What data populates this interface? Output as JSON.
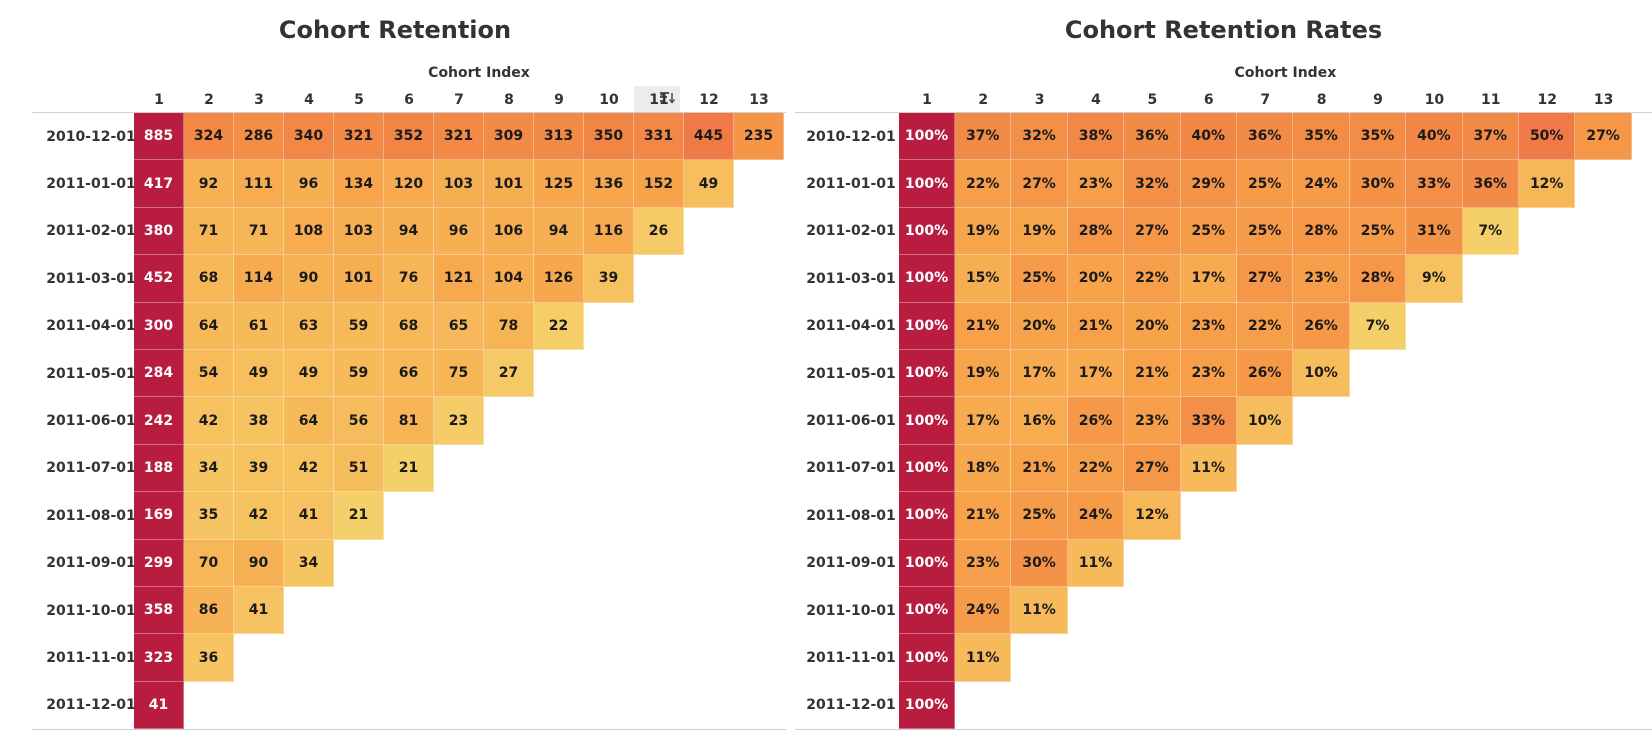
{
  "chart_data": [
    {
      "type": "heatmap",
      "title": "Cohort Retention",
      "xlabel": "Cohort Index",
      "ylabel": "",
      "columns": [
        "1",
        "2",
        "3",
        "4",
        "5",
        "6",
        "7",
        "8",
        "9",
        "10",
        "11",
        "12",
        "13"
      ],
      "rows": [
        "2010-12-01",
        "2011-01-01",
        "2011-02-01",
        "2011-03-01",
        "2011-04-01",
        "2011-05-01",
        "2011-06-01",
        "2011-07-01",
        "2011-08-01",
        "2011-09-01",
        "2011-10-01",
        "2011-11-01",
        "2011-12-01"
      ],
      "values": [
        [
          885,
          324,
          286,
          340,
          321,
          352,
          321,
          309,
          313,
          350,
          331,
          445,
          235
        ],
        [
          417,
          92,
          111,
          96,
          134,
          120,
          103,
          101,
          125,
          136,
          152,
          49
        ],
        [
          380,
          71,
          71,
          108,
          103,
          94,
          96,
          106,
          94,
          116,
          26
        ],
        [
          452,
          68,
          114,
          90,
          101,
          76,
          121,
          104,
          126,
          39
        ],
        [
          300,
          64,
          61,
          63,
          59,
          68,
          65,
          78,
          22
        ],
        [
          284,
          54,
          49,
          49,
          59,
          66,
          75,
          27
        ],
        [
          242,
          42,
          38,
          64,
          56,
          81,
          23
        ],
        [
          188,
          34,
          39,
          42,
          51,
          21
        ],
        [
          169,
          35,
          42,
          41,
          21
        ],
        [
          299,
          70,
          90,
          34
        ],
        [
          358,
          86,
          41
        ],
        [
          323,
          36
        ],
        [
          41
        ]
      ],
      "display": [
        [
          "885",
          "324",
          "286",
          "340",
          "321",
          "352",
          "321",
          "309",
          "313",
          "350",
          "331",
          "445",
          "235"
        ],
        [
          "417",
          "92",
          "111",
          "96",
          "134",
          "120",
          "103",
          "101",
          "125",
          "136",
          "152",
          "49"
        ],
        [
          "380",
          "71",
          "71",
          "108",
          "103",
          "94",
          "96",
          "106",
          "94",
          "116",
          "26"
        ],
        [
          "452",
          "68",
          "114",
          "90",
          "101",
          "76",
          "121",
          "104",
          "126",
          "39"
        ],
        [
          "300",
          "64",
          "61",
          "63",
          "59",
          "68",
          "65",
          "78",
          "22"
        ],
        [
          "284",
          "54",
          "49",
          "49",
          "59",
          "66",
          "75",
          "27"
        ],
        [
          "242",
          "42",
          "38",
          "64",
          "56",
          "81",
          "23"
        ],
        [
          "188",
          "34",
          "39",
          "42",
          "51",
          "21"
        ],
        [
          "169",
          "35",
          "42",
          "41",
          "21"
        ],
        [
          "299",
          "70",
          "90",
          "34"
        ],
        [
          "358",
          "86",
          "41"
        ],
        [
          "323",
          "36"
        ],
        [
          "41"
        ]
      ],
      "color_scale": {
        "low": "#f5d06a",
        "mid": "#f7a24a",
        "high": "#ef7a45",
        "first_column": "#b81d3f"
      }
    },
    {
      "type": "heatmap",
      "title": "Cohort Retention Rates",
      "xlabel": "Cohort Index",
      "ylabel": "",
      "columns": [
        "1",
        "2",
        "3",
        "4",
        "5",
        "6",
        "7",
        "8",
        "9",
        "10",
        "11",
        "12",
        "13"
      ],
      "rows": [
        "2010-12-01",
        "2011-01-01",
        "2011-02-01",
        "2011-03-01",
        "2011-04-01",
        "2011-05-01",
        "2011-06-01",
        "2011-07-01",
        "2011-08-01",
        "2011-09-01",
        "2011-10-01",
        "2011-11-01",
        "2011-12-01"
      ],
      "values": [
        [
          100,
          37,
          32,
          38,
          36,
          40,
          36,
          35,
          35,
          40,
          37,
          50,
          27
        ],
        [
          100,
          22,
          27,
          23,
          32,
          29,
          25,
          24,
          30,
          33,
          36,
          12
        ],
        [
          100,
          19,
          19,
          28,
          27,
          25,
          25,
          28,
          25,
          31,
          7
        ],
        [
          100,
          15,
          25,
          20,
          22,
          17,
          27,
          23,
          28,
          9
        ],
        [
          100,
          21,
          20,
          21,
          20,
          23,
          22,
          26,
          7
        ],
        [
          100,
          19,
          17,
          17,
          21,
          23,
          26,
          10
        ],
        [
          100,
          17,
          16,
          26,
          23,
          33,
          10
        ],
        [
          100,
          18,
          21,
          22,
          27,
          11
        ],
        [
          100,
          21,
          25,
          24,
          12
        ],
        [
          100,
          23,
          30,
          11
        ],
        [
          100,
          24,
          11
        ],
        [
          100,
          11
        ],
        [
          100
        ]
      ],
      "display": [
        [
          "100%",
          "37%",
          "32%",
          "38%",
          "36%",
          "40%",
          "36%",
          "35%",
          "35%",
          "40%",
          "37%",
          "50%",
          "27%"
        ],
        [
          "100%",
          "22%",
          "27%",
          "23%",
          "32%",
          "29%",
          "25%",
          "24%",
          "30%",
          "33%",
          "36%",
          "12%"
        ],
        [
          "100%",
          "19%",
          "19%",
          "28%",
          "27%",
          "25%",
          "25%",
          "28%",
          "25%",
          "31%",
          "7%"
        ],
        [
          "100%",
          "15%",
          "25%",
          "20%",
          "22%",
          "17%",
          "27%",
          "23%",
          "28%",
          "9%"
        ],
        [
          "100%",
          "21%",
          "20%",
          "21%",
          "20%",
          "23%",
          "22%",
          "26%",
          "7%"
        ],
        [
          "100%",
          "19%",
          "17%",
          "17%",
          "21%",
          "23%",
          "26%",
          "10%"
        ],
        [
          "100%",
          "17%",
          "16%",
          "26%",
          "23%",
          "33%",
          "10%"
        ],
        [
          "100%",
          "18%",
          "21%",
          "22%",
          "27%",
          "11%"
        ],
        [
          "100%",
          "21%",
          "25%",
          "24%",
          "12%"
        ],
        [
          "100%",
          "23%",
          "30%",
          "11%"
        ],
        [
          "100%",
          "24%",
          "11%"
        ],
        [
          "100%",
          "11%"
        ],
        [
          "100%"
        ]
      ],
      "color_scale": {
        "low": "#f5d06a",
        "mid": "#f7a24a",
        "high": "#ef7a45",
        "first_column": "#b81d3f"
      }
    }
  ],
  "icons": {
    "sort": "sort-descending-icon"
  }
}
